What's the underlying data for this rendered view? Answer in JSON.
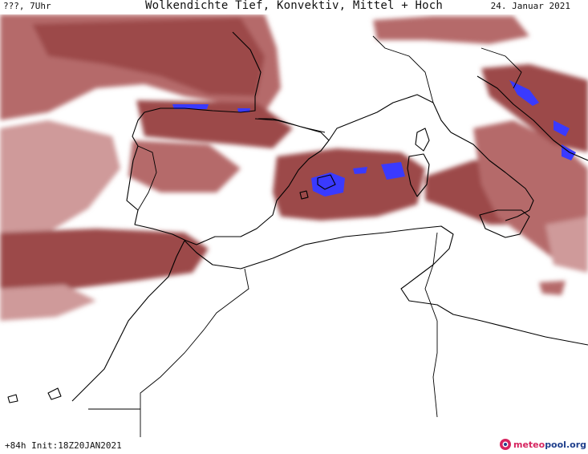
{
  "header": {
    "left_label": "???, 7Uhr",
    "title": "Wolkendichte  Tief, Konvektiv, Mittel + Hoch",
    "date": "24. Januar 2021"
  },
  "footer": {
    "run_info": "+84h Init:18Z20JAN2021",
    "logo_part1": "meteo",
    "logo_part2": "pool",
    "logo_part3": ".org"
  },
  "colors": {
    "cloud_dark": "#9c4a4a",
    "cloud_mid": "#b56a6a",
    "cloud_light": "#cf9a9a",
    "convective": "#3a3aff",
    "coastline": "#000000",
    "logo_red": "#d6245f",
    "logo_blue": "#1f3f8c"
  }
}
